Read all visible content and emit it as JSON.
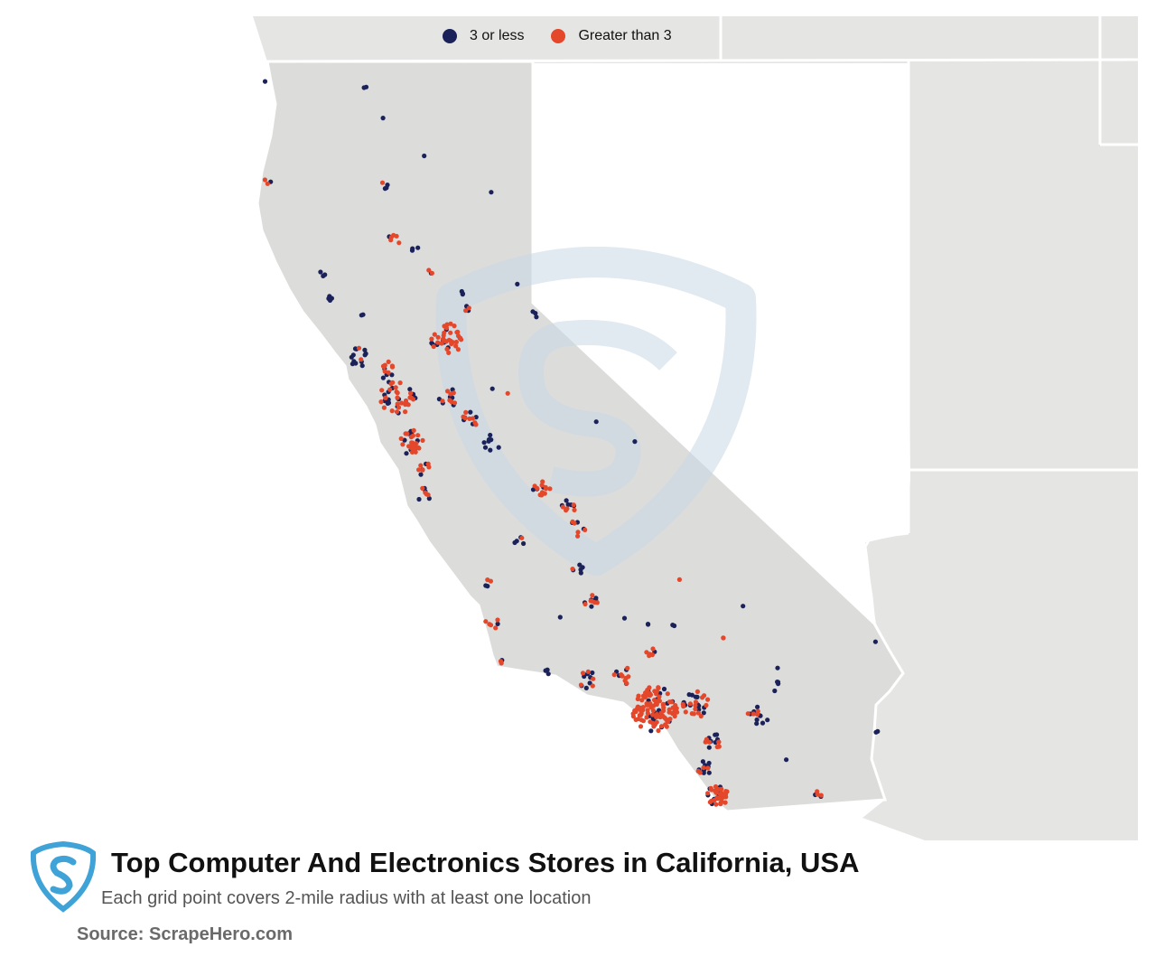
{
  "legend": {
    "items": [
      {
        "label": "3 or less",
        "color": "#1b2259"
      },
      {
        "label": "Greater than 3",
        "color": "#e5472a"
      }
    ]
  },
  "title": "Top Computer And Electronics Stores in California, USA",
  "subtitle": "Each grid point covers 2-mile radius with at least one location",
  "source": "Source: ScrapeHero.com",
  "colors": {
    "land": "#e5e5e3",
    "ocean": "#ffffff",
    "borders": "#ffffff",
    "watermark": "#c9d9e6",
    "logo": "#3fa3d8"
  }
}
